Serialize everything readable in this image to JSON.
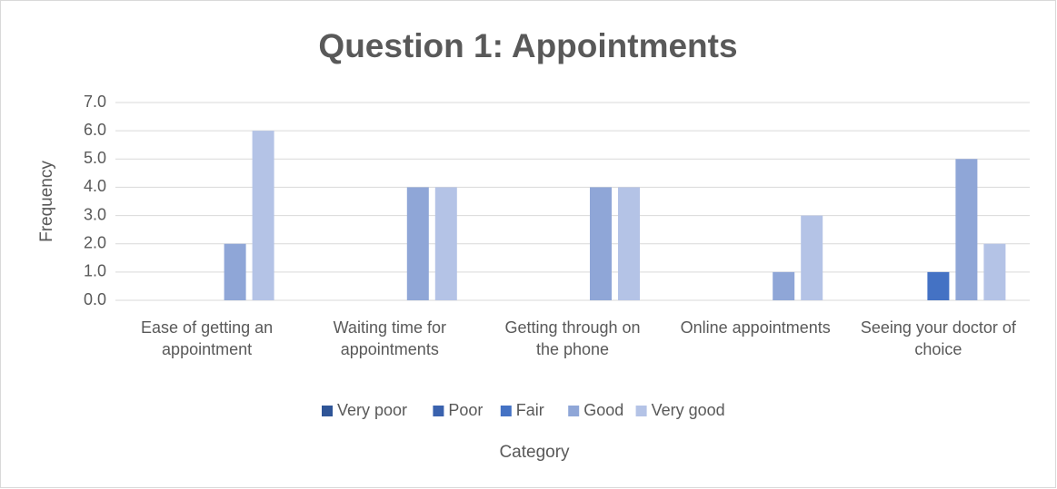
{
  "chart_data": {
    "type": "bar",
    "title": "Question 1: Appointments",
    "x_label": "Category",
    "y_label": "Frequency",
    "categories": [
      "Ease of getting an appointment",
      "Waiting time for appointments",
      "Getting through on the phone",
      "Online appointments",
      "Seeing your doctor of choice"
    ],
    "series": [
      {
        "name": "Very poor",
        "color": "#2f5597",
        "values": [
          0,
          0,
          0,
          0,
          0
        ]
      },
      {
        "name": "Poor",
        "color": "#3a62ae",
        "values": [
          0,
          0,
          0,
          0,
          0
        ]
      },
      {
        "name": "Fair",
        "color": "#4472c4",
        "values": [
          0,
          0,
          0,
          0,
          1
        ]
      },
      {
        "name": "Good",
        "color": "#8fa6d7",
        "values": [
          2,
          4,
          4,
          1,
          5
        ]
      },
      {
        "name": "Very good",
        "color": "#b4c3e6",
        "values": [
          6,
          4,
          4,
          3,
          2
        ]
      }
    ],
    "ylim": [
      0,
      7
    ],
    "yticks": [
      {
        "value": 0,
        "label": "0.0"
      },
      {
        "value": 1,
        "label": "1.0"
      },
      {
        "value": 2,
        "label": "2.0"
      },
      {
        "value": 3,
        "label": "3.0"
      },
      {
        "value": 4,
        "label": "4.0"
      },
      {
        "value": 5,
        "label": "5.0"
      },
      {
        "value": 6,
        "label": "6.0"
      },
      {
        "value": 7,
        "label": "7.0"
      }
    ],
    "grid": true,
    "legend": "bottom"
  }
}
